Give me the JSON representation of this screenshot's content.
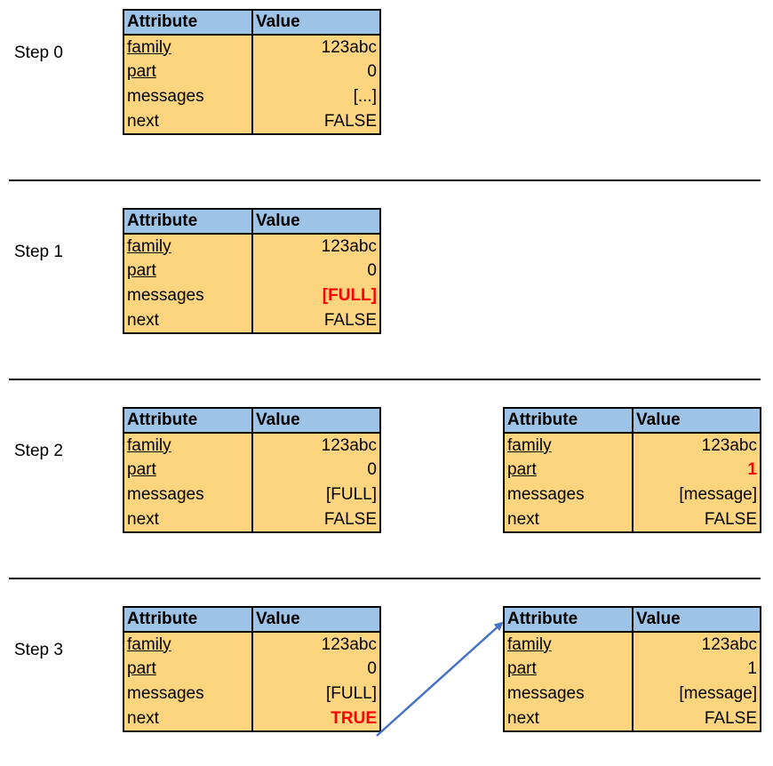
{
  "header": {
    "attribute": "Attribute",
    "value": "Value"
  },
  "steps": [
    {
      "label": "Step 0",
      "tables": [
        {
          "rows": [
            {
              "attr": "family",
              "value": "123abc",
              "key": true,
              "highlight": false
            },
            {
              "attr": "part",
              "value": "0",
              "key": true,
              "highlight": false
            },
            {
              "attr": "messages",
              "value": "[...]",
              "key": false,
              "highlight": false
            },
            {
              "attr": "next",
              "value": "FALSE",
              "key": false,
              "highlight": false
            }
          ]
        }
      ]
    },
    {
      "label": "Step 1",
      "tables": [
        {
          "rows": [
            {
              "attr": "family",
              "value": "123abc",
              "key": true,
              "highlight": false
            },
            {
              "attr": "part",
              "value": "0",
              "key": true,
              "highlight": false
            },
            {
              "attr": "messages",
              "value": "[FULL]",
              "key": false,
              "highlight": true
            },
            {
              "attr": "next",
              "value": "FALSE",
              "key": false,
              "highlight": false
            }
          ]
        }
      ]
    },
    {
      "label": "Step 2",
      "tables": [
        {
          "rows": [
            {
              "attr": "family",
              "value": "123abc",
              "key": true,
              "highlight": false
            },
            {
              "attr": "part",
              "value": "0",
              "key": true,
              "highlight": false
            },
            {
              "attr": "messages",
              "value": "[FULL]",
              "key": false,
              "highlight": false
            },
            {
              "attr": "next",
              "value": "FALSE",
              "key": false,
              "highlight": false
            }
          ]
        },
        {
          "rows": [
            {
              "attr": "family",
              "value": "123abc",
              "key": true,
              "highlight": false
            },
            {
              "attr": "part",
              "value": "1",
              "key": true,
              "highlight": true
            },
            {
              "attr": "messages",
              "value": "[message]",
              "key": false,
              "highlight": false
            },
            {
              "attr": "next",
              "value": "FALSE",
              "key": false,
              "highlight": false
            }
          ]
        }
      ]
    },
    {
      "label": "Step 3",
      "tables": [
        {
          "rows": [
            {
              "attr": "family",
              "value": "123abc",
              "key": true,
              "highlight": false
            },
            {
              "attr": "part",
              "value": "0",
              "key": true,
              "highlight": false
            },
            {
              "attr": "messages",
              "value": "[FULL]",
              "key": false,
              "highlight": false
            },
            {
              "attr": "next",
              "value": "TRUE",
              "key": false,
              "highlight": true
            }
          ]
        },
        {
          "rows": [
            {
              "attr": "family",
              "value": "123abc",
              "key": true,
              "highlight": false
            },
            {
              "attr": "part",
              "value": "1",
              "key": true,
              "highlight": false
            },
            {
              "attr": "messages",
              "value": "[message]",
              "key": false,
              "highlight": false
            },
            {
              "attr": "next",
              "value": "FALSE",
              "key": false,
              "highlight": false
            }
          ]
        }
      ]
    }
  ],
  "colors": {
    "header_fill": "#9dc3e6",
    "row_fill": "#fdd57f",
    "highlight_text": "#ff0000",
    "arrow": "#4472c4"
  }
}
